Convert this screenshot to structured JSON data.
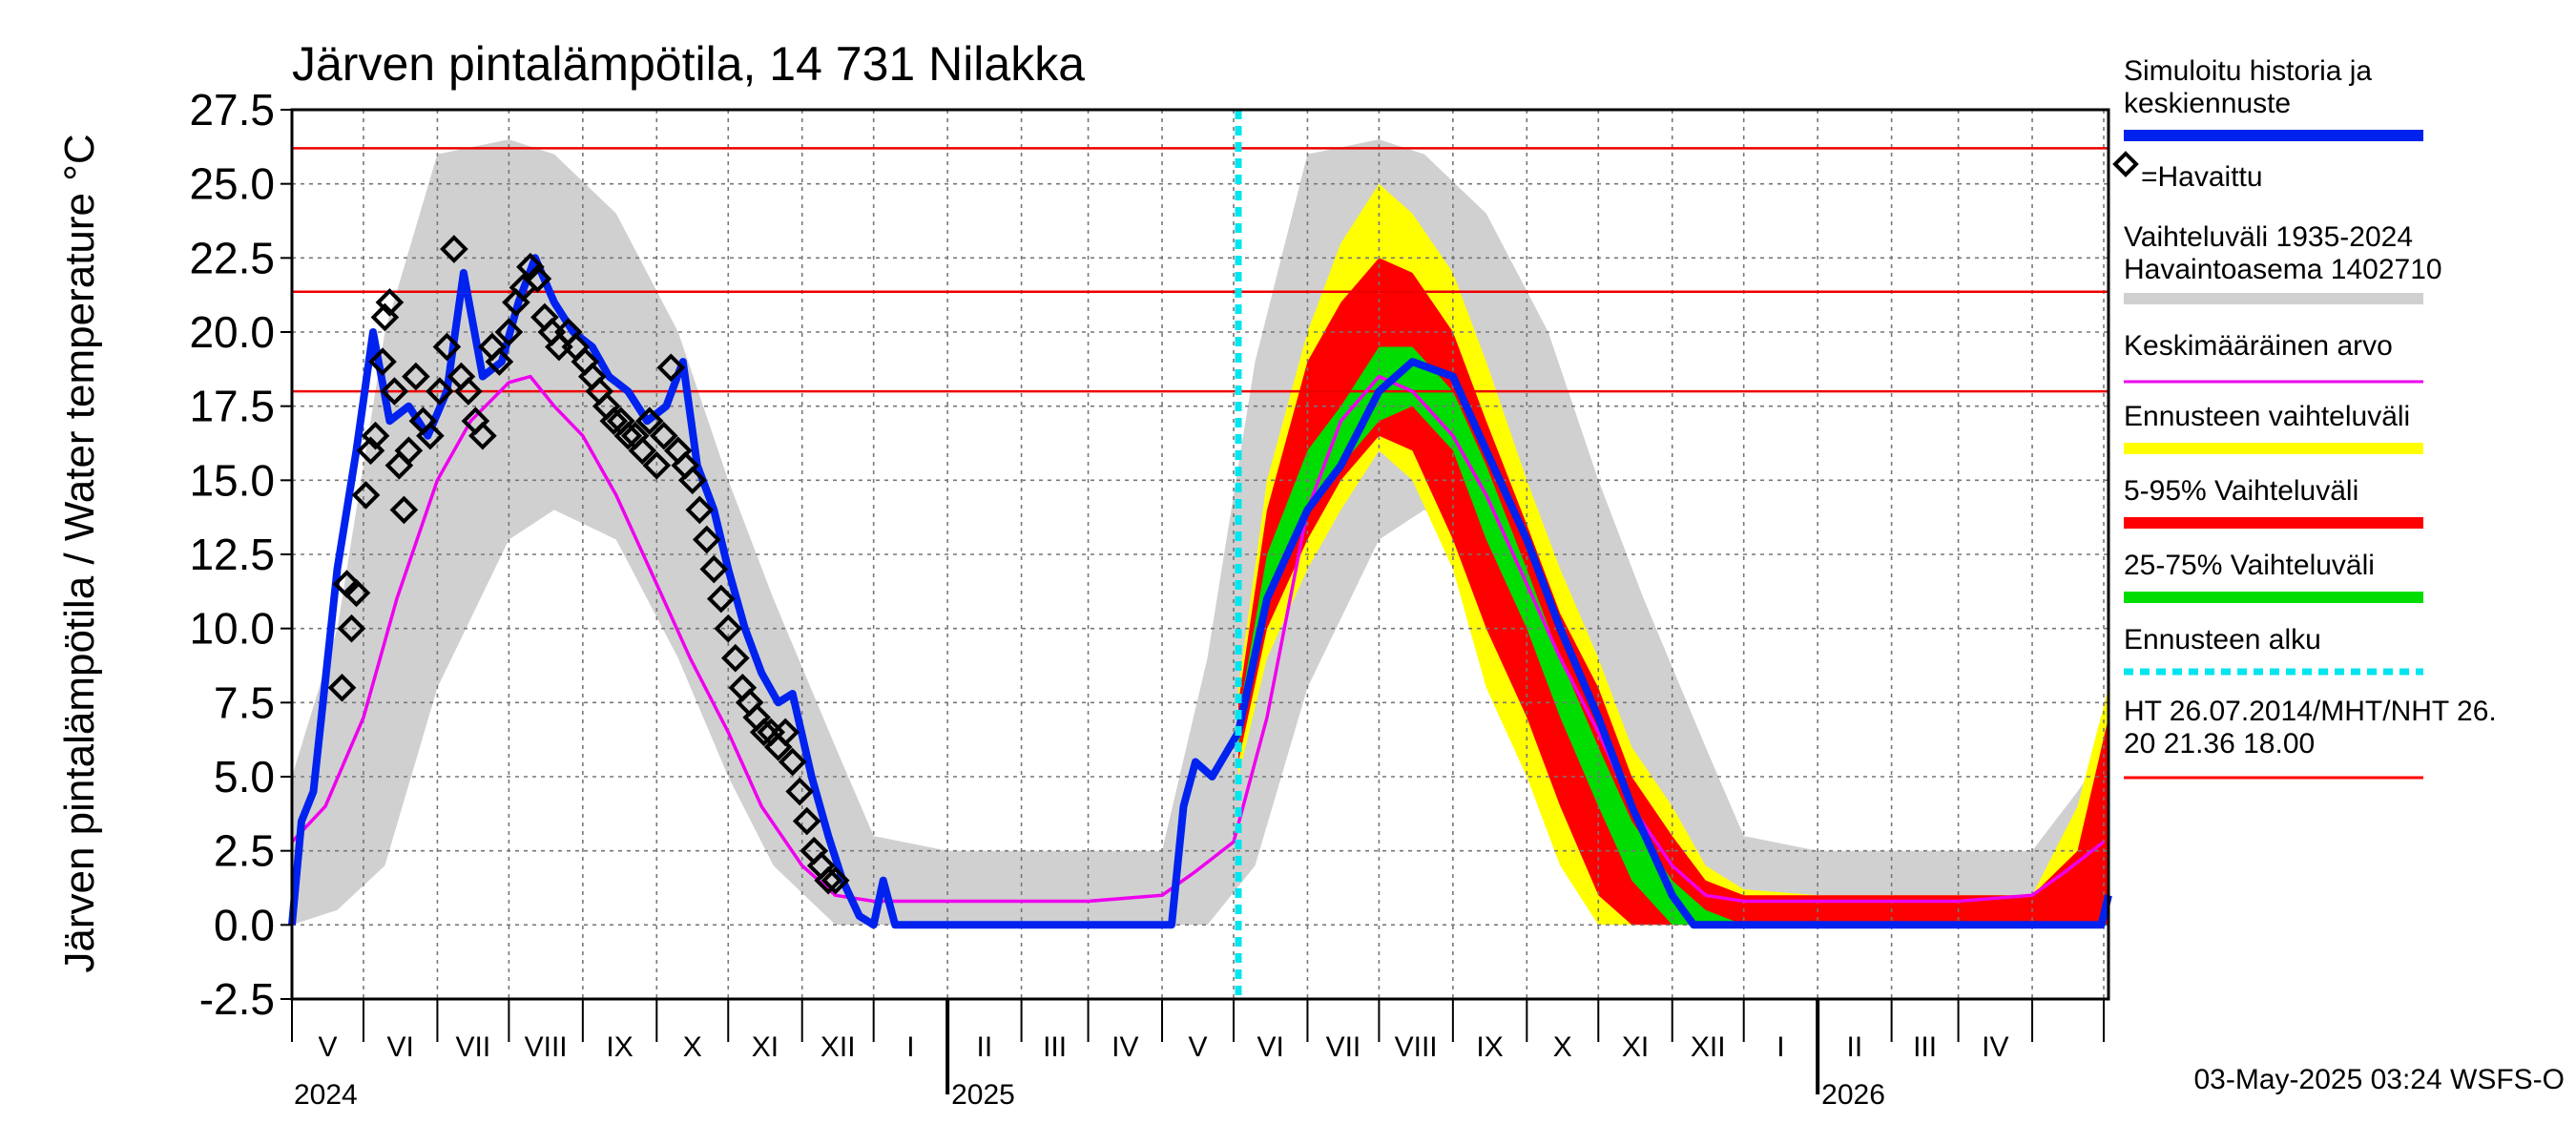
{
  "chart_data": {
    "type": "line",
    "title": "Järven pintalämpötila, 14 731 Nilakka",
    "ylabel": "Järven pintalämpötila / Water temperature °C",
    "xlabel": "",
    "ylim": [
      -2.5,
      27.5
    ],
    "yticks": [
      "-2.5",
      "0.0",
      "2.5",
      "5.0",
      "7.5",
      "10.0",
      "12.5",
      "15.0",
      "17.5",
      "20.0",
      "22.5",
      "25.0",
      "27.5"
    ],
    "xlim": [
      "2024-04-01",
      "2026-05-03"
    ],
    "months": [
      "V",
      "VI",
      "VII",
      "VIII",
      "IX",
      "X",
      "XI",
      "XII",
      "I",
      "II",
      "III",
      "IV",
      "V",
      "VI",
      "VII",
      "VIII",
      "IX",
      "X",
      "XI",
      "XII",
      "I",
      "II",
      "III",
      "IV"
    ],
    "years": [
      "2024",
      "2025",
      "2026"
    ],
    "grid": true,
    "forecast_start": "2025-05-03",
    "reference_lines": [
      26.2,
      21.36,
      18.0
    ],
    "series": [
      {
        "name": "Simuloitu historia ja keskiennuste",
        "color": "#0022ee",
        "points": [
          [
            "2024-04-01",
            0
          ],
          [
            "2024-04-05",
            3.5
          ],
          [
            "2024-04-10",
            4.5
          ],
          [
            "2024-04-20",
            12
          ],
          [
            "2024-04-28",
            16
          ],
          [
            "2024-05-05",
            20
          ],
          [
            "2024-05-12",
            17
          ],
          [
            "2024-05-20",
            17.5
          ],
          [
            "2024-05-28",
            16.5
          ],
          [
            "2024-06-05",
            18
          ],
          [
            "2024-06-12",
            22
          ],
          [
            "2024-06-20",
            18.5
          ],
          [
            "2024-06-28",
            19
          ],
          [
            "2024-07-05",
            21
          ],
          [
            "2024-07-12",
            22.5
          ],
          [
            "2024-07-20",
            21
          ],
          [
            "2024-07-28",
            20
          ],
          [
            "2024-08-05",
            19.5
          ],
          [
            "2024-08-12",
            18.5
          ],
          [
            "2024-08-20",
            18
          ],
          [
            "2024-08-28",
            17
          ],
          [
            "2024-09-05",
            17.5
          ],
          [
            "2024-09-12",
            19
          ],
          [
            "2024-09-18",
            15.5
          ],
          [
            "2024-09-25",
            14
          ],
          [
            "2024-10-01",
            12
          ],
          [
            "2024-10-08",
            10
          ],
          [
            "2024-10-15",
            8.5
          ],
          [
            "2024-10-22",
            7.5
          ],
          [
            "2024-10-28",
            7.8
          ],
          [
            "2024-11-05",
            5
          ],
          [
            "2024-11-12",
            3
          ],
          [
            "2024-11-18",
            1.5
          ],
          [
            "2024-11-25",
            0.3
          ],
          [
            "2024-12-01",
            0
          ],
          [
            "2024-12-05",
            1.5
          ],
          [
            "2024-12-10",
            0
          ],
          [
            "2024-12-25",
            0
          ],
          [
            "2025-01-01",
            0
          ],
          [
            "2025-04-05",
            0
          ],
          [
            "2025-04-10",
            4
          ],
          [
            "2025-04-15",
            5.5
          ],
          [
            "2025-04-22",
            5
          ],
          [
            "2025-05-03",
            6.5
          ],
          [
            "2025-05-15",
            11
          ],
          [
            "2025-06-01",
            14
          ],
          [
            "2025-06-15",
            15.5
          ],
          [
            "2025-07-01",
            18
          ],
          [
            "2025-07-15",
            19
          ],
          [
            "2025-08-01",
            18.5
          ],
          [
            "2025-08-15",
            16
          ],
          [
            "2025-09-01",
            13
          ],
          [
            "2025-09-15",
            10
          ],
          [
            "2025-10-01",
            7
          ],
          [
            "2025-10-15",
            4
          ],
          [
            "2025-11-01",
            1
          ],
          [
            "2025-11-10",
            0
          ],
          [
            "2026-01-01",
            0
          ],
          [
            "2026-04-30",
            0
          ],
          [
            "2026-05-03",
            1
          ]
        ]
      },
      {
        "name": "Keskimääräinen arvo",
        "color": "#ee00ee",
        "points": [
          [
            "2024-04-01",
            2.8
          ],
          [
            "2024-04-15",
            4
          ],
          [
            "2024-05-01",
            7
          ],
          [
            "2024-05-15",
            11
          ],
          [
            "2024-06-01",
            15
          ],
          [
            "2024-06-15",
            17
          ],
          [
            "2024-07-01",
            18.3
          ],
          [
            "2024-07-10",
            18.5
          ],
          [
            "2024-07-20",
            17.5
          ],
          [
            "2024-08-01",
            16.5
          ],
          [
            "2024-08-15",
            14.5
          ],
          [
            "2024-09-01",
            11.5
          ],
          [
            "2024-09-15",
            9
          ],
          [
            "2024-10-01",
            6.5
          ],
          [
            "2024-10-15",
            4
          ],
          [
            "2024-11-01",
            2
          ],
          [
            "2024-11-15",
            1
          ],
          [
            "2024-12-01",
            0.8
          ],
          [
            "2025-01-01",
            0.8
          ],
          [
            "2025-02-01",
            0.8
          ],
          [
            "2025-03-01",
            0.8
          ],
          [
            "2025-04-01",
            1
          ],
          [
            "2025-04-15",
            1.8
          ],
          [
            "2025-05-01",
            2.8
          ],
          [
            "2025-05-15",
            7
          ],
          [
            "2025-06-01",
            14
          ],
          [
            "2025-06-15",
            17
          ],
          [
            "2025-07-01",
            18.5
          ],
          [
            "2025-07-15",
            18
          ],
          [
            "2025-08-01",
            16.5
          ],
          [
            "2025-08-15",
            14.5
          ],
          [
            "2025-09-01",
            11.5
          ],
          [
            "2025-09-15",
            9
          ],
          [
            "2025-10-01",
            6.5
          ],
          [
            "2025-10-15",
            4
          ],
          [
            "2025-11-01",
            2
          ],
          [
            "2025-11-15",
            1
          ],
          [
            "2025-12-01",
            0.8
          ],
          [
            "2026-01-01",
            0.8
          ],
          [
            "2026-02-01",
            0.8
          ],
          [
            "2026-03-01",
            0.8
          ],
          [
            "2026-04-01",
            1
          ],
          [
            "2026-04-15",
            1.8
          ],
          [
            "2026-05-01",
            2.8
          ]
        ]
      },
      {
        "name": "=Havaittu",
        "color": "#000000",
        "marker": "diamond",
        "points": [
          [
            "2024-04-22",
            8
          ],
          [
            "2024-04-24",
            11.5
          ],
          [
            "2024-04-26",
            10
          ],
          [
            "2024-04-28",
            11.2
          ],
          [
            "2024-05-02",
            14.5
          ],
          [
            "2024-05-04",
            16
          ],
          [
            "2024-05-06",
            16.5
          ],
          [
            "2024-05-09",
            19
          ],
          [
            "2024-05-10",
            20.5
          ],
          [
            "2024-05-12",
            21
          ],
          [
            "2024-05-14",
            18
          ],
          [
            "2024-05-16",
            15.5
          ],
          [
            "2024-05-18",
            14
          ],
          [
            "2024-05-20",
            16
          ],
          [
            "2024-05-23",
            18.5
          ],
          [
            "2024-05-26",
            17
          ],
          [
            "2024-05-29",
            16.5
          ],
          [
            "2024-06-02",
            18
          ],
          [
            "2024-06-05",
            19.5
          ],
          [
            "2024-06-08",
            22.8
          ],
          [
            "2024-06-11",
            18.5
          ],
          [
            "2024-06-14",
            18
          ],
          [
            "2024-06-17",
            17
          ],
          [
            "2024-06-20",
            16.5
          ],
          [
            "2024-06-24",
            19.5
          ],
          [
            "2024-06-27",
            19
          ],
          [
            "2024-07-01",
            20
          ],
          [
            "2024-07-04",
            21
          ],
          [
            "2024-07-07",
            21.5
          ],
          [
            "2024-07-10",
            22.2
          ],
          [
            "2024-07-13",
            21.8
          ],
          [
            "2024-07-16",
            20.5
          ],
          [
            "2024-07-19",
            20
          ],
          [
            "2024-07-22",
            19.5
          ],
          [
            "2024-07-26",
            20
          ],
          [
            "2024-07-29",
            19.5
          ],
          [
            "2024-08-02",
            19
          ],
          [
            "2024-08-05",
            18.5
          ],
          [
            "2024-08-08",
            18
          ],
          [
            "2024-08-11",
            17.5
          ],
          [
            "2024-08-14",
            17
          ],
          [
            "2024-08-17",
            17
          ],
          [
            "2024-08-20",
            16.5
          ],
          [
            "2024-08-23",
            16.5
          ],
          [
            "2024-08-26",
            16
          ],
          [
            "2024-08-29",
            17
          ],
          [
            "2024-09-01",
            15.5
          ],
          [
            "2024-09-04",
            16.5
          ],
          [
            "2024-09-07",
            18.8
          ],
          [
            "2024-09-10",
            16
          ],
          [
            "2024-09-13",
            15.5
          ],
          [
            "2024-09-16",
            15
          ],
          [
            "2024-09-19",
            14
          ],
          [
            "2024-09-22",
            13
          ],
          [
            "2024-09-25",
            12
          ],
          [
            "2024-09-28",
            11
          ],
          [
            "2024-10-01",
            10
          ],
          [
            "2024-10-04",
            9
          ],
          [
            "2024-10-07",
            8
          ],
          [
            "2024-10-10",
            7.5
          ],
          [
            "2024-10-13",
            7
          ],
          [
            "2024-10-16",
            6.5
          ],
          [
            "2024-10-19",
            6.5
          ],
          [
            "2024-10-22",
            6
          ],
          [
            "2024-10-25",
            6.5
          ],
          [
            "2024-10-28",
            5.5
          ],
          [
            "2024-10-31",
            4.5
          ],
          [
            "2024-11-03",
            3.5
          ],
          [
            "2024-11-06",
            2.5
          ],
          [
            "2024-11-09",
            2
          ],
          [
            "2024-11-12",
            1.5
          ],
          [
            "2024-11-15",
            1.5
          ]
        ]
      }
    ],
    "bands": [
      {
        "name": "Vaihteluväli 1935-2024  Havaintoasema 1402710",
        "color": "#d0d0d0",
        "x": [
          "2024-04-01",
          "2024-04-20",
          "2024-05-10",
          "2024-06-01",
          "2024-07-01",
          "2024-07-20",
          "2024-08-15",
          "2024-09-10",
          "2024-10-01",
          "2024-10-20",
          "2024-11-15",
          "2024-12-01",
          "2025-01-01",
          "2025-04-01",
          "2025-04-20",
          "2025-05-10",
          "2025-06-01",
          "2025-07-01",
          "2025-07-20",
          "2025-08-15",
          "2025-09-10",
          "2025-10-01",
          "2025-10-20",
          "2025-11-15",
          "2025-12-01",
          "2026-01-01",
          "2026-04-01",
          "2026-04-20",
          "2026-05-03"
        ],
        "low": [
          0,
          0.5,
          2,
          8,
          13,
          14,
          13,
          9,
          5,
          2,
          0,
          0,
          0,
          0,
          0,
          2,
          8,
          13,
          14,
          13,
          9,
          5,
          2,
          0,
          0,
          0,
          0,
          0,
          0
        ],
        "high": [
          5,
          10,
          20,
          26,
          26.5,
          26,
          24,
          20,
          15,
          11,
          6,
          3,
          2.5,
          2.5,
          9,
          19,
          26,
          26.5,
          26,
          24,
          20,
          15,
          11,
          6,
          3,
          2.5,
          2.5,
          4.5,
          6
        ]
      },
      {
        "name": "Ennusteen vaihteluväli",
        "color": "#ffff00",
        "x": [
          "2025-05-03",
          "2025-05-15",
          "2025-06-01",
          "2025-06-15",
          "2025-07-01",
          "2025-07-15",
          "2025-08-01",
          "2025-08-15",
          "2025-09-01",
          "2025-09-15",
          "2025-10-01",
          "2025-10-15",
          "2025-11-01",
          "2025-11-15",
          "2025-12-01",
          "2026-01-01",
          "2026-04-01",
          "2026-04-20",
          "2026-05-03"
        ],
        "low": [
          5,
          9,
          12,
          14,
          16,
          15,
          12,
          8,
          5,
          2,
          0,
          0,
          0,
          0,
          0,
          0,
          0,
          0,
          0
        ],
        "high": [
          8,
          15,
          20,
          23,
          25,
          24,
          22,
          19,
          15,
          12,
          9,
          6,
          4,
          2,
          1.2,
          1,
          1,
          4,
          8
        ]
      },
      {
        "name": "5-95% Vaihteluväli",
        "color": "#ff0000",
        "x": [
          "2025-05-03",
          "2025-05-15",
          "2025-06-01",
          "2025-06-15",
          "2025-07-01",
          "2025-07-15",
          "2025-08-01",
          "2025-08-15",
          "2025-09-01",
          "2025-09-15",
          "2025-10-01",
          "2025-10-15",
          "2025-11-01",
          "2025-11-15",
          "2025-12-01",
          "2026-01-01",
          "2026-04-01",
          "2026-04-20",
          "2026-05-03"
        ],
        "low": [
          5.5,
          10,
          13,
          15,
          16.5,
          16,
          13,
          10,
          7,
          4,
          1,
          0,
          0,
          0,
          0,
          0,
          0,
          0,
          0
        ],
        "high": [
          7.5,
          14,
          19,
          21,
          22.5,
          22,
          20,
          17,
          13.5,
          10.5,
          8,
          5,
          3,
          1.5,
          1,
          1,
          1,
          2.5,
          7
        ]
      },
      {
        "name": "25-75% Vaihteluväli",
        "color": "#00dd00",
        "x": [
          "2025-05-03",
          "2025-05-15",
          "2025-06-01",
          "2025-06-15",
          "2025-07-01",
          "2025-07-15",
          "2025-08-01",
          "2025-08-15",
          "2025-09-01",
          "2025-09-15",
          "2025-10-01",
          "2025-10-15",
          "2025-11-01",
          "2025-11-15",
          "2025-12-01"
        ],
        "low": [
          6,
          11,
          14,
          15.5,
          17,
          17.5,
          16,
          13,
          10,
          7,
          4,
          1.5,
          0,
          0,
          0
        ],
        "high": [
          7,
          12.5,
          16,
          17.5,
          19.5,
          19.5,
          18,
          15.5,
          12,
          9,
          6,
          3.5,
          1.5,
          0.5,
          0
        ]
      }
    ],
    "legend": {
      "placement": "right",
      "items": [
        {
          "label": "Simuloitu historia ja keskiennuste",
          "color": "#0022ee",
          "kind": "line"
        },
        {
          "label": "=Havaittu",
          "color": "#000000",
          "kind": "diamond"
        },
        {
          "label": "Vaihteluväli 1935-2024  Havaintoasema 1402710",
          "color": "#d0d0d0",
          "kind": "line"
        },
        {
          "label": "Keskimääräinen arvo",
          "color": "#ee00ee",
          "kind": "thin"
        },
        {
          "label": "Ennusteen vaihteluväli",
          "color": "#ffff00",
          "kind": "line"
        },
        {
          "label": "5-95% Vaihteluväli",
          "color": "#ff0000",
          "kind": "line"
        },
        {
          "label": "25-75% Vaihteluväli",
          "color": "#00dd00",
          "kind": "line"
        },
        {
          "label": "Ennusteen alku",
          "color": "#00e5ee",
          "kind": "dashed"
        },
        {
          "label": "HT 26.07.2014/MHT/NHT 26.20 21.36 18.00",
          "color": "#ff0000",
          "kind": "thin"
        }
      ]
    },
    "footer": "03-May-2025 03:24 WSFS-O"
  }
}
